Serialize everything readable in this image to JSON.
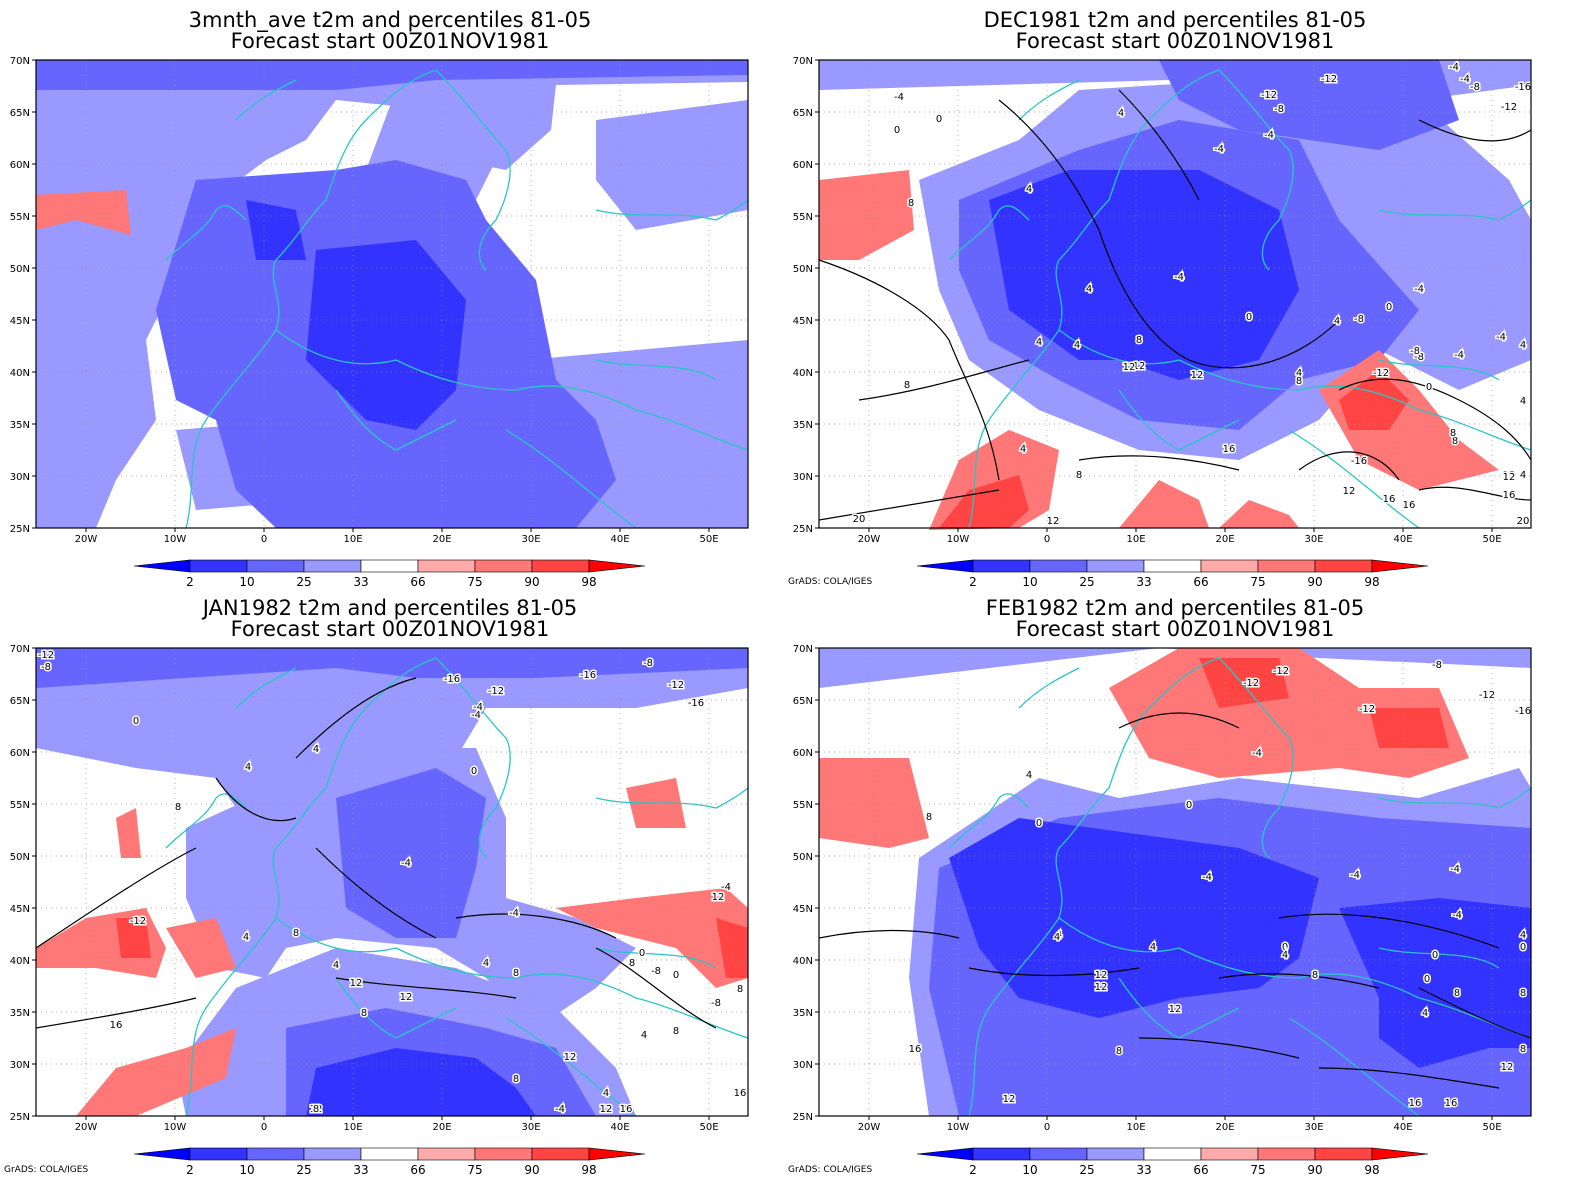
{
  "panels": [
    {
      "title_line1": "3mnth_ave t2m and percentiles 81-05",
      "title_line2": "Forecast start 00Z01NOV1981",
      "credit": ""
    },
    {
      "title_line1": "DEC1981 t2m and percentiles 81-05",
      "title_line2": "Forecast start 00Z01NOV1981",
      "credit": "GrADS: COLA/IGES"
    },
    {
      "title_line1": "JAN1982 t2m and percentiles 81-05",
      "title_line2": "Forecast start 00Z01NOV1981",
      "credit": "GrADS: COLA/IGES"
    },
    {
      "title_line1": "FEB1982 t2m and percentiles 81-05",
      "title_line2": "Forecast start 00Z01NOV1981",
      "credit": "GrADS: COLA/IGES"
    }
  ],
  "axes": {
    "lat_labels": [
      "70N",
      "65N",
      "60N",
      "55N",
      "50N",
      "45N",
      "40N",
      "35N",
      "30N",
      "25N"
    ],
    "lon_labels": [
      "20W",
      "10W",
      "0",
      "10E",
      "20E",
      "30E",
      "40E",
      "50E"
    ]
  },
  "colorbar": {
    "labels": [
      "2",
      "10",
      "25",
      "33",
      "66",
      "75",
      "90",
      "98"
    ],
    "colors": [
      "#0000ff",
      "#3333ff",
      "#6666ff",
      "#9999ff",
      "#ffffff",
      "#ffaaaa",
      "#ff7777",
      "#ff4444",
      "#ff0000"
    ]
  },
  "contour_labels": {
    "dec": [
      "-12",
      "-8",
      "-12",
      "-8",
      "-4",
      "-4",
      "0",
      "-4",
      "4",
      "-4",
      "4",
      "4",
      "-8",
      "-12",
      "8",
      "12",
      "-4",
      "-4",
      "0",
      "0",
      "4",
      "4",
      "4",
      "8",
      "12",
      "12",
      "4",
      "8",
      "0",
      "-8",
      "-4",
      "16",
      "-16",
      "12",
      "8",
      "12",
      "16",
      "20",
      "20",
      "-4",
      "-12",
      "-16",
      "8",
      "4",
      "8",
      "4",
      "12",
      "16",
      "-4",
      "-8",
      "16",
      "0",
      "4",
      "12",
      "8",
      "4"
    ],
    "jan": [
      "-16",
      "-12",
      "-16",
      "-12",
      "-8",
      "-12",
      "-8",
      "-16",
      "-4",
      "0",
      "4",
      "4",
      "0",
      "-4",
      "-12",
      "4",
      "8",
      "4",
      "12",
      "8",
      "12",
      "-4",
      "-4",
      "8",
      "8",
      "4",
      "8",
      "8",
      "12",
      "4",
      "-4",
      "0",
      "-4",
      "-8",
      "0",
      "8",
      "-8",
      "8",
      "4",
      "16",
      "12",
      "12",
      "8",
      "0",
      "16",
      "16",
      "12"
    ],
    "feb": [
      "-12",
      "-8",
      "-12",
      "-16",
      "-12",
      "-4",
      "-12",
      "0",
      "4",
      "0",
      "8",
      "4",
      "-4",
      "-4",
      "-4",
      "4",
      "12",
      "4",
      "12",
      "0",
      "4",
      "8",
      "-4",
      "0",
      "4",
      "0",
      "0",
      "8",
      "4",
      "8",
      "12",
      "8",
      "8",
      "16",
      "12",
      "16",
      "16",
      "12"
    ]
  }
}
